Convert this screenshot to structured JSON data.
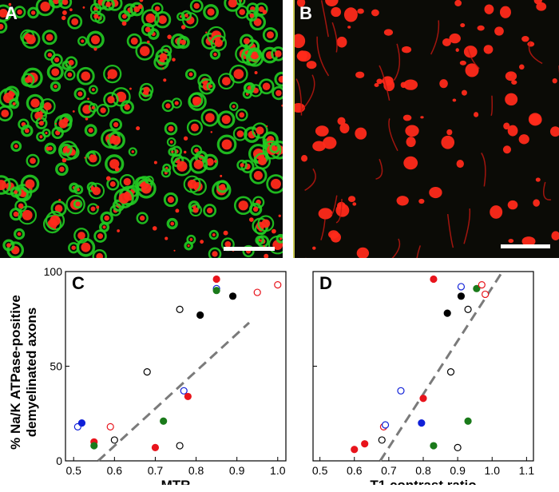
{
  "panels": {
    "a": {
      "letter": "A"
    },
    "b": {
      "letter": "B"
    },
    "c": {
      "letter": "C"
    },
    "d": {
      "letter": "D"
    }
  },
  "y_axis_label_lines": [
    "% Na/K ATPase-positive",
    "demyelinated axons"
  ],
  "colors": {
    "black": "#000000",
    "red": "#e8141c",
    "green": "#1a7a1a",
    "blue": "#1020d8",
    "trend": "#7a7a7a",
    "micro_red": "#ff2a1a",
    "micro_green": "#22cc22"
  },
  "chart_data": [
    {
      "type": "scatter",
      "panel": "C",
      "xlabel": "MTR",
      "ylabel": "% Na/K ATPase-positive demyelinated axons",
      "xlim": [
        0.48,
        1.02
      ],
      "ylim": [
        0,
        100
      ],
      "xticks": [
        "0.5",
        "0.6",
        "0.7",
        "0.8",
        "0.9",
        "1.0"
      ],
      "yticks": [
        "0",
        "50",
        "100"
      ],
      "trendline": {
        "style": "dashed",
        "points": [
          [
            0.56,
            0
          ],
          [
            0.93,
            73
          ]
        ]
      },
      "points": [
        {
          "x": 0.51,
          "y": 18,
          "color": "blue",
          "filled": false
        },
        {
          "x": 0.52,
          "y": 20,
          "color": "blue",
          "filled": true
        },
        {
          "x": 0.55,
          "y": 10,
          "color": "red",
          "filled": true
        },
        {
          "x": 0.55,
          "y": 8,
          "color": "green",
          "filled": true
        },
        {
          "x": 0.59,
          "y": 18,
          "color": "red",
          "filled": false
        },
        {
          "x": 0.6,
          "y": 11,
          "color": "black",
          "filled": false
        },
        {
          "x": 0.68,
          "y": 47,
          "color": "black",
          "filled": false
        },
        {
          "x": 0.7,
          "y": 7,
          "color": "red",
          "filled": true
        },
        {
          "x": 0.72,
          "y": 21,
          "color": "green",
          "filled": true
        },
        {
          "x": 0.76,
          "y": 80,
          "color": "black",
          "filled": false
        },
        {
          "x": 0.76,
          "y": 8,
          "color": "black",
          "filled": false
        },
        {
          "x": 0.77,
          "y": 37,
          "color": "blue",
          "filled": false
        },
        {
          "x": 0.78,
          "y": 34,
          "color": "red",
          "filled": true
        },
        {
          "x": 0.81,
          "y": 77,
          "color": "black",
          "filled": true
        },
        {
          "x": 0.85,
          "y": 96,
          "color": "red",
          "filled": true
        },
        {
          "x": 0.85,
          "y": 91,
          "color": "blue",
          "filled": false
        },
        {
          "x": 0.85,
          "y": 90,
          "color": "green",
          "filled": true
        },
        {
          "x": 0.89,
          "y": 87,
          "color": "black",
          "filled": true
        },
        {
          "x": 0.95,
          "y": 89,
          "color": "red",
          "filled": false
        },
        {
          "x": 1.0,
          "y": 93,
          "color": "red",
          "filled": false
        }
      ]
    },
    {
      "type": "scatter",
      "panel": "D",
      "xlabel": "T1 contrast ratio",
      "ylabel": "% Na/K ATPase-positive demyelinated axons",
      "xlim": [
        0.48,
        1.12
      ],
      "ylim": [
        0,
        100
      ],
      "xticks": [
        "0.5",
        "0.6",
        "0.7",
        "0.8",
        "0.9",
        "1.0",
        "1.1"
      ],
      "yticks": [],
      "trendline": {
        "style": "dashed",
        "points": [
          [
            0.675,
            0
          ],
          [
            1.03,
            100
          ]
        ]
      },
      "points": [
        {
          "x": 0.6,
          "y": 6,
          "color": "red",
          "filled": true
        },
        {
          "x": 0.63,
          "y": 9,
          "color": "red",
          "filled": true
        },
        {
          "x": 0.68,
          "y": 11,
          "color": "black",
          "filled": false
        },
        {
          "x": 0.685,
          "y": 18,
          "color": "red",
          "filled": false
        },
        {
          "x": 0.69,
          "y": 19,
          "color": "blue",
          "filled": false
        },
        {
          "x": 0.735,
          "y": 37,
          "color": "blue",
          "filled": false
        },
        {
          "x": 0.795,
          "y": 20,
          "color": "blue",
          "filled": true
        },
        {
          "x": 0.8,
          "y": 33,
          "color": "red",
          "filled": true
        },
        {
          "x": 0.83,
          "y": 8,
          "color": "green",
          "filled": true
        },
        {
          "x": 0.83,
          "y": 96,
          "color": "red",
          "filled": true
        },
        {
          "x": 0.87,
          "y": 78,
          "color": "black",
          "filled": true
        },
        {
          "x": 0.88,
          "y": 47,
          "color": "black",
          "filled": false
        },
        {
          "x": 0.9,
          "y": 7,
          "color": "black",
          "filled": false
        },
        {
          "x": 0.91,
          "y": 92,
          "color": "blue",
          "filled": false
        },
        {
          "x": 0.91,
          "y": 87,
          "color": "black",
          "filled": true
        },
        {
          "x": 0.93,
          "y": 80,
          "color": "black",
          "filled": false
        },
        {
          "x": 0.93,
          "y": 21,
          "color": "green",
          "filled": true
        },
        {
          "x": 0.955,
          "y": 91,
          "color": "green",
          "filled": true
        },
        {
          "x": 0.97,
          "y": 93,
          "color": "red",
          "filled": false
        },
        {
          "x": 0.98,
          "y": 88,
          "color": "red",
          "filled": false
        }
      ]
    }
  ]
}
